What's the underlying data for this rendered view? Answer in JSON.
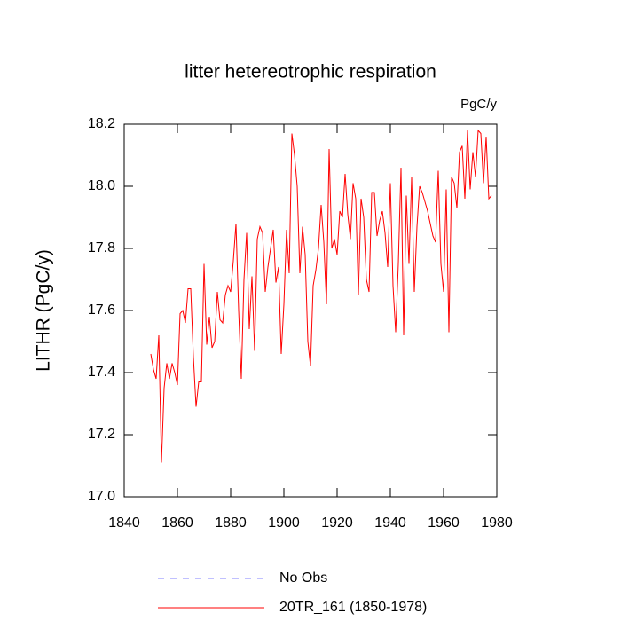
{
  "chart_data": {
    "type": "line",
    "title": "litter hetereotrophic respiration",
    "units": "PgC/y",
    "y_label": "LITHR  (PgC/y)",
    "x": [
      1850,
      1851,
      1852,
      1853,
      1854,
      1855,
      1856,
      1857,
      1858,
      1859,
      1860,
      1861,
      1862,
      1863,
      1864,
      1865,
      1866,
      1867,
      1868,
      1869,
      1870,
      1871,
      1872,
      1873,
      1874,
      1875,
      1876,
      1877,
      1878,
      1879,
      1880,
      1881,
      1882,
      1883,
      1884,
      1885,
      1886,
      1887,
      1888,
      1889,
      1890,
      1891,
      1892,
      1893,
      1894,
      1895,
      1896,
      1897,
      1898,
      1899,
      1900,
      1901,
      1902,
      1903,
      1904,
      1905,
      1906,
      1907,
      1908,
      1909,
      1910,
      1911,
      1912,
      1913,
      1914,
      1915,
      1916,
      1917,
      1918,
      1919,
      1920,
      1921,
      1922,
      1923,
      1924,
      1925,
      1926,
      1927,
      1928,
      1929,
      1930,
      1931,
      1932,
      1933,
      1934,
      1935,
      1936,
      1937,
      1938,
      1939,
      1940,
      1941,
      1942,
      1943,
      1944,
      1945,
      1946,
      1947,
      1948,
      1949,
      1950,
      1951,
      1952,
      1953,
      1954,
      1955,
      1956,
      1957,
      1958,
      1959,
      1960,
      1961,
      1962,
      1963,
      1964,
      1965,
      1966,
      1967,
      1968,
      1969,
      1970,
      1971,
      1972,
      1973,
      1974,
      1975,
      1976,
      1977,
      1978
    ],
    "series": [
      {
        "name": "20TR_161 (1850-1978)",
        "color": "#ff0000",
        "values": [
          17.46,
          17.41,
          17.38,
          17.52,
          17.11,
          17.35,
          17.43,
          17.38,
          17.43,
          17.4,
          17.36,
          17.59,
          17.6,
          17.56,
          17.67,
          17.67,
          17.45,
          17.29,
          17.37,
          17.37,
          17.75,
          17.49,
          17.58,
          17.48,
          17.5,
          17.66,
          17.57,
          17.56,
          17.65,
          17.68,
          17.66,
          17.76,
          17.88,
          17.6,
          17.38,
          17.7,
          17.85,
          17.54,
          17.71,
          17.47,
          17.83,
          17.87,
          17.85,
          17.66,
          17.74,
          17.8,
          17.86,
          17.69,
          17.74,
          17.46,
          17.62,
          17.86,
          17.72,
          18.17,
          18.1,
          18.0,
          17.72,
          17.87,
          17.78,
          17.5,
          17.42,
          17.68,
          17.73,
          17.8,
          17.94,
          17.82,
          17.62,
          18.12,
          17.8,
          17.83,
          17.78,
          17.92,
          17.9,
          18.04,
          17.91,
          17.83,
          18.01,
          17.96,
          17.65,
          17.96,
          17.9,
          17.7,
          17.66,
          17.98,
          17.98,
          17.84,
          17.89,
          17.92,
          17.85,
          17.74,
          18.01,
          17.68,
          17.53,
          17.75,
          18.06,
          17.52,
          17.97,
          17.75,
          18.03,
          17.66,
          17.87,
          18.0,
          17.98,
          17.95,
          17.92,
          17.88,
          17.84,
          17.82,
          18.05,
          17.75,
          17.66,
          17.99,
          17.53,
          18.03,
          18.01,
          17.93,
          18.11,
          18.13,
          17.96,
          18.18,
          17.99,
          18.11,
          18.03,
          18.18,
          18.17,
          18.01,
          18.16,
          17.96,
          17.97
        ]
      }
    ],
    "reference": {
      "name": "No Obs",
      "color": "#8080ff"
    },
    "xlim": [
      1840,
      1980
    ],
    "xticks": [
      1840,
      1860,
      1880,
      1900,
      1920,
      1940,
      1960,
      1980
    ],
    "ylim": [
      17.0,
      18.2
    ],
    "yticks": [
      {
        "value": 17.0,
        "label": "17.0"
      },
      17.2,
      17.4,
      17.6,
      17.8,
      {
        "value": 18.0,
        "label": "18.0"
      },
      18.2
    ]
  }
}
